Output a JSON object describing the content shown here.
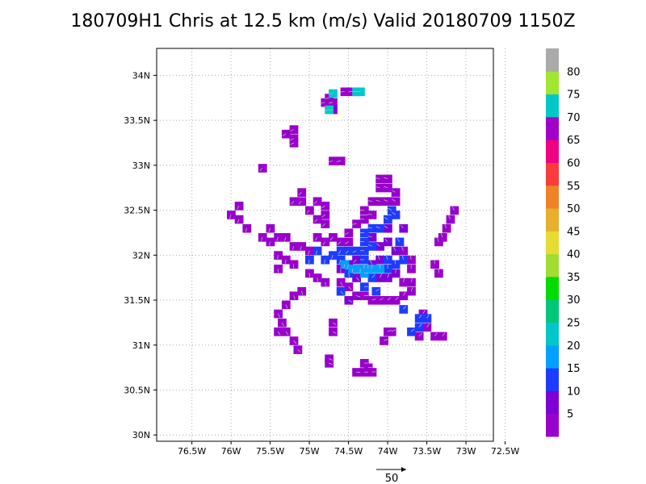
{
  "chart_data": {
    "type": "heatmap",
    "title": "180709H1 Chris at 12.5 km (m/s) Valid 20180709  1150Z",
    "xlabel": "",
    "ylabel": "",
    "xlim": [
      -76.95,
      -72.65
    ],
    "ylim": [
      29.93,
      34.3
    ],
    "x_ticks": [
      {
        "value": -76.5,
        "label": "76.5W"
      },
      {
        "value": -76.0,
        "label": "76W"
      },
      {
        "value": -75.5,
        "label": "75.5W"
      },
      {
        "value": -75.0,
        "label": "75W"
      },
      {
        "value": -74.5,
        "label": "74.5W"
      },
      {
        "value": -74.0,
        "label": "74W"
      },
      {
        "value": -73.5,
        "label": "73.5W"
      },
      {
        "value": -73.0,
        "label": "73W"
      },
      {
        "value": -72.5,
        "label": "72.5W"
      }
    ],
    "y_ticks": [
      {
        "value": 30.0,
        "label": "30N"
      },
      {
        "value": 30.5,
        "label": "30.5N"
      },
      {
        "value": 31.0,
        "label": "31N"
      },
      {
        "value": 31.5,
        "label": "31.5N"
      },
      {
        "value": 32.0,
        "label": "32N"
      },
      {
        "value": 32.5,
        "label": "32.5N"
      },
      {
        "value": 33.0,
        "label": "33N"
      },
      {
        "value": 33.5,
        "label": "33.5N"
      },
      {
        "value": 34.0,
        "label": "34N"
      }
    ],
    "grid": true,
    "colorbar": {
      "colors": [
        "#9900cc",
        "#7f00d6",
        "#1e3cff",
        "#00a0ff",
        "#00c8c8",
        "#00c878",
        "#00dc00",
        "#a0dc32",
        "#e6dc32",
        "#e6af2d",
        "#f08228",
        "#fa3c3c",
        "#f00082",
        "#a000c8",
        "#00c8c8",
        "#a0e632",
        "#aaaaaa"
      ],
      "labels": [
        "5",
        "10",
        "15",
        "20",
        "25",
        "30",
        "35",
        "40",
        "45",
        "50",
        "55",
        "60",
        "65",
        "70",
        "75",
        "80"
      ]
    },
    "series": [
      {
        "level": 5,
        "cells": [
          [
            -74.45,
            33.82
          ],
          [
            -74.55,
            33.82
          ],
          [
            -74.7,
            33.7
          ],
          [
            -74.8,
            33.7
          ],
          [
            -74.75,
            33.75
          ],
          [
            -75.2,
            33.4
          ],
          [
            -75.2,
            33.3
          ],
          [
            -75.2,
            33.25
          ],
          [
            -75.3,
            33.35
          ],
          [
            -75.6,
            32.97
          ],
          [
            -74.7,
            33.05
          ],
          [
            -74.6,
            33.05
          ],
          [
            -75.1,
            32.7
          ],
          [
            -75.1,
            32.6
          ],
          [
            -75.2,
            32.6
          ],
          [
            -75.0,
            32.5
          ],
          [
            -74.9,
            32.6
          ],
          [
            -74.8,
            32.55
          ],
          [
            -74.8,
            32.45
          ],
          [
            -74.9,
            32.4
          ],
          [
            -74.8,
            32.35
          ],
          [
            -75.9,
            32.55
          ],
          [
            -76.0,
            32.45
          ],
          [
            -75.9,
            32.4
          ],
          [
            -75.8,
            32.3
          ],
          [
            -74.1,
            32.85
          ],
          [
            -74.0,
            32.85
          ],
          [
            -74.1,
            32.75
          ],
          [
            -74.0,
            32.75
          ],
          [
            -73.9,
            32.7
          ],
          [
            -74.2,
            32.6
          ],
          [
            -74.1,
            32.6
          ],
          [
            -74.0,
            32.6
          ],
          [
            -73.9,
            32.6
          ],
          [
            -74.3,
            32.5
          ],
          [
            -74.2,
            32.45
          ],
          [
            -74.3,
            32.4
          ],
          [
            -74.4,
            32.35
          ],
          [
            -73.15,
            32.5
          ],
          [
            -73.2,
            32.4
          ],
          [
            -73.25,
            32.3
          ],
          [
            -73.3,
            32.2
          ],
          [
            -73.35,
            32.15
          ],
          [
            -75.5,
            32.3
          ],
          [
            -75.6,
            32.2
          ],
          [
            -75.5,
            32.15
          ],
          [
            -75.4,
            32.2
          ],
          [
            -75.3,
            32.2
          ],
          [
            -75.2,
            32.1
          ],
          [
            -75.1,
            32.1
          ],
          [
            -75.0,
            32.05
          ],
          [
            -75.4,
            32.0
          ],
          [
            -75.3,
            31.95
          ],
          [
            -75.2,
            31.9
          ],
          [
            -75.4,
            31.85
          ],
          [
            -74.9,
            32.2
          ],
          [
            -74.8,
            32.15
          ],
          [
            -74.7,
            32.2
          ],
          [
            -74.6,
            32.15
          ],
          [
            -74.5,
            32.25
          ],
          [
            -74.5,
            32.15
          ],
          [
            -75.0,
            31.8
          ],
          [
            -74.9,
            31.75
          ],
          [
            -74.8,
            31.7
          ],
          [
            -75.1,
            31.6
          ],
          [
            -75.2,
            31.55
          ],
          [
            -75.3,
            31.45
          ],
          [
            -75.4,
            31.35
          ],
          [
            -75.35,
            31.25
          ],
          [
            -75.4,
            31.15
          ],
          [
            -75.3,
            31.15
          ],
          [
            -75.2,
            31.05
          ],
          [
            -75.15,
            30.95
          ],
          [
            -74.6,
            31.7
          ],
          [
            -74.5,
            31.65
          ],
          [
            -74.4,
            31.55
          ],
          [
            -74.3,
            31.55
          ],
          [
            -74.2,
            31.5
          ],
          [
            -74.1,
            31.5
          ],
          [
            -74.0,
            31.5
          ],
          [
            -73.9,
            31.5
          ],
          [
            -73.8,
            31.55
          ],
          [
            -73.7,
            31.6
          ],
          [
            -73.7,
            31.7
          ],
          [
            -73.8,
            31.7
          ],
          [
            -73.7,
            31.85
          ],
          [
            -73.7,
            31.95
          ],
          [
            -73.8,
            32.05
          ],
          [
            -74.7,
            31.25
          ],
          [
            -74.7,
            31.15
          ],
          [
            -73.35,
            31.8
          ],
          [
            -73.4,
            31.9
          ],
          [
            -73.55,
            31.35
          ],
          [
            -73.5,
            31.2
          ],
          [
            -73.4,
            31.1
          ],
          [
            -73.3,
            31.1
          ],
          [
            -73.6,
            31.1
          ],
          [
            -74.05,
            31.05
          ],
          [
            -73.95,
            31.15
          ],
          [
            -74.0,
            31.15
          ],
          [
            -74.75,
            30.85
          ],
          [
            -74.75,
            30.8
          ],
          [
            -74.4,
            30.7
          ],
          [
            -74.3,
            30.7
          ],
          [
            -74.25,
            30.75
          ],
          [
            -74.2,
            30.7
          ],
          [
            -74.3,
            30.8
          ]
        ]
      },
      {
        "level": 10,
        "cells": [
          [
            -74.7,
            33.62
          ],
          [
            -74.0,
            32.3
          ],
          [
            -73.8,
            32.3
          ],
          [
            -74.2,
            32.2
          ],
          [
            -74.1,
            32.1
          ],
          [
            -74.0,
            32.15
          ],
          [
            -73.9,
            32.05
          ],
          [
            -74.4,
            31.95
          ],
          [
            -74.5,
            31.9
          ],
          [
            -74.6,
            31.85
          ],
          [
            -74.3,
            31.85
          ],
          [
            -74.2,
            31.9
          ],
          [
            -74.1,
            31.95
          ],
          [
            -74.4,
            31.75
          ],
          [
            -74.1,
            31.75
          ],
          [
            -74.0,
            31.75
          ],
          [
            -73.9,
            31.8
          ],
          [
            -74.5,
            31.5
          ]
        ]
      },
      {
        "level": 15,
        "cells": [
          [
            -74.0,
            32.4
          ],
          [
            -73.9,
            32.45
          ],
          [
            -73.95,
            32.5
          ],
          [
            -74.1,
            32.3
          ],
          [
            -74.2,
            32.3
          ],
          [
            -74.3,
            32.25
          ],
          [
            -74.3,
            32.15
          ],
          [
            -74.2,
            32.1
          ],
          [
            -74.3,
            32.05
          ],
          [
            -74.4,
            32.05
          ],
          [
            -74.5,
            32.05
          ],
          [
            -74.6,
            32.05
          ],
          [
            -74.7,
            32.0
          ],
          [
            -74.8,
            31.95
          ],
          [
            -74.9,
            32.05
          ],
          [
            -75.0,
            31.95
          ],
          [
            -74.6,
            31.95
          ],
          [
            -74.3,
            31.95
          ],
          [
            -74.0,
            31.95
          ],
          [
            -73.8,
            31.95
          ],
          [
            -73.85,
            32.15
          ],
          [
            -74.0,
            31.85
          ],
          [
            -73.9,
            31.9
          ],
          [
            -74.5,
            31.8
          ],
          [
            -74.2,
            31.75
          ],
          [
            -74.3,
            31.65
          ],
          [
            -74.15,
            31.6
          ],
          [
            -74.6,
            31.6
          ],
          [
            -73.6,
            31.3
          ],
          [
            -73.6,
            31.2
          ],
          [
            -73.7,
            31.15
          ],
          [
            -73.5,
            31.3
          ],
          [
            -73.8,
            31.4
          ]
        ]
      },
      {
        "level": 20,
        "cells": [
          [
            -74.35,
            31.85
          ],
          [
            -74.25,
            31.85
          ],
          [
            -74.3,
            31.8
          ],
          [
            -74.2,
            31.85
          ],
          [
            -74.45,
            31.85
          ],
          [
            -74.1,
            31.85
          ],
          [
            -74.55,
            31.9
          ]
        ]
      },
      {
        "level": 75,
        "cells": [
          [
            -74.35,
            33.82
          ],
          [
            -74.4,
            33.82
          ],
          [
            -74.7,
            33.8
          ],
          [
            -74.75,
            33.62
          ]
        ]
      }
    ],
    "legend": "colorbar-right",
    "reference_vector": {
      "label": "50"
    }
  }
}
